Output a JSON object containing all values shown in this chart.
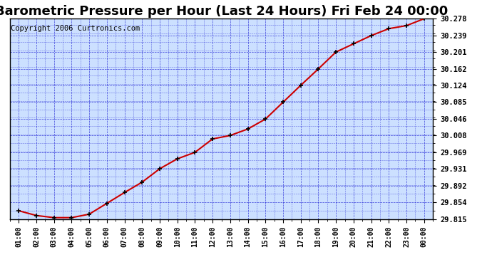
{
  "title": "Barometric Pressure per Hour (Last 24 Hours) Fri Feb 24 00:00",
  "copyright": "Copyright 2006 Curtronics.com",
  "x_labels": [
    "01:00",
    "02:00",
    "03:00",
    "04:00",
    "05:00",
    "06:00",
    "07:00",
    "08:00",
    "09:00",
    "10:00",
    "11:00",
    "12:00",
    "13:00",
    "14:00",
    "15:00",
    "16:00",
    "17:00",
    "18:00",
    "19:00",
    "20:00",
    "21:00",
    "22:00",
    "23:00",
    "00:00"
  ],
  "y_values": [
    29.834,
    29.823,
    29.818,
    29.818,
    29.826,
    29.851,
    29.876,
    29.9,
    29.931,
    29.954,
    29.969,
    30.0,
    30.008,
    30.023,
    30.046,
    30.085,
    30.124,
    30.162,
    30.201,
    30.22,
    30.239,
    30.255,
    30.262,
    30.278
  ],
  "yticks": [
    29.815,
    29.854,
    29.892,
    29.931,
    29.969,
    30.008,
    30.046,
    30.085,
    30.124,
    30.162,
    30.201,
    30.239,
    30.278
  ],
  "ymin": 29.815,
  "ymax": 30.278,
  "line_color": "#cc0000",
  "marker_color": "#000000",
  "bg_color": "#cce0ff",
  "plot_bg": "#ddeeff",
  "grid_color": "#0000cc",
  "title_fontsize": 13,
  "copyright_fontsize": 7.5
}
